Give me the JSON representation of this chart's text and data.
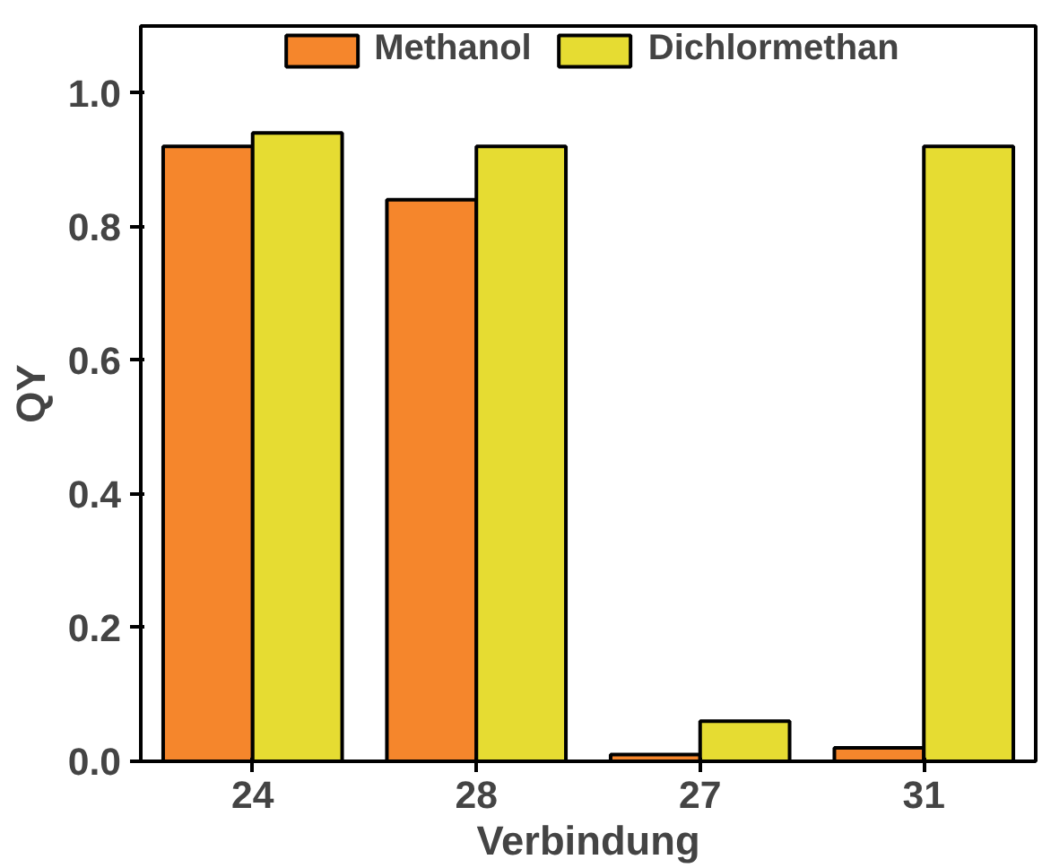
{
  "chart_data": {
    "type": "bar",
    "xlabel": "Verbindung",
    "ylabel": "QY",
    "categories": [
      "24",
      "28",
      "27",
      "31"
    ],
    "series": [
      {
        "name": "Methanol",
        "color": "#f5862c",
        "values": [
          0.92,
          0.84,
          0.01,
          0.02
        ]
      },
      {
        "name": "Dichlormethan",
        "color": "#e6dc32",
        "values": [
          0.94,
          0.92,
          0.06,
          0.92
        ]
      }
    ],
    "ylim": [
      0,
      1.1
    ],
    "yticks": [
      {
        "value": 0,
        "label": "0.0"
      },
      0.2,
      0.4,
      0.6,
      0.8,
      {
        "value": 1,
        "label": "1.0"
      }
    ],
    "grid": false,
    "legend": "top"
  }
}
